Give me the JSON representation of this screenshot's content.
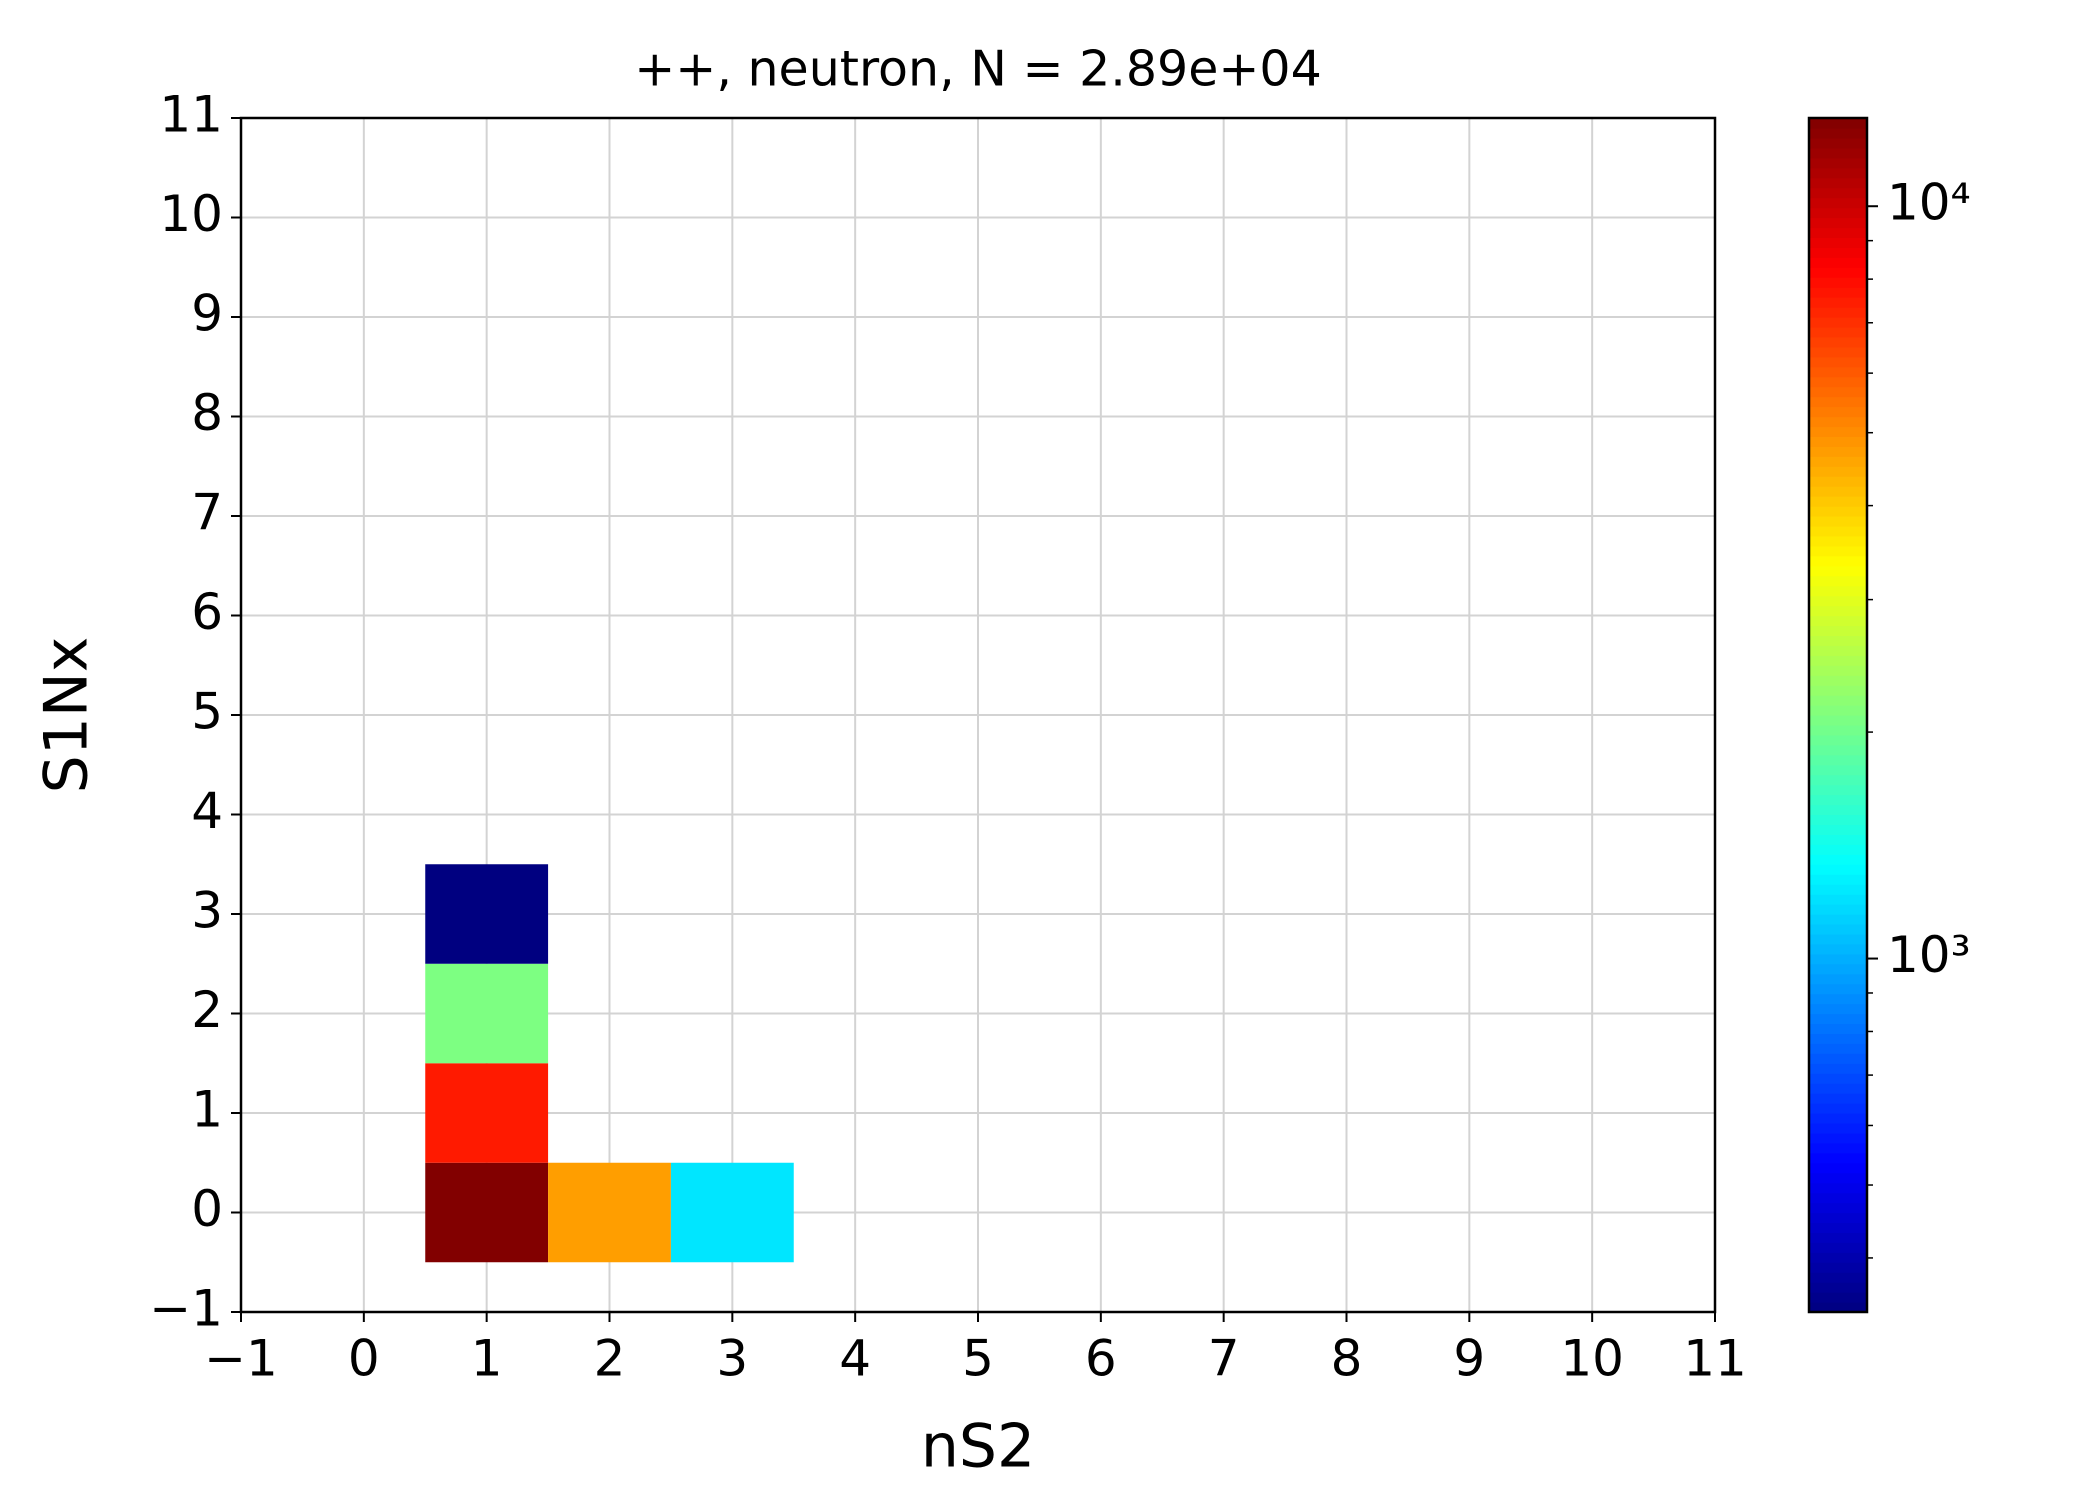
{
  "chart_data": {
    "type": "heatmap",
    "title": "++, neutron, N = 2.89e+04",
    "x_label": "nS2",
    "y_label": "S1Nx",
    "x": [
      1,
      2,
      3,
      1,
      1,
      1
    ],
    "y": [
      0,
      0,
      0,
      1,
      2,
      3
    ],
    "values": [
      13000,
      4710,
      1220,
      7570,
      2090,
      340
    ],
    "xlim": [
      -1,
      11
    ],
    "ylim": [
      -1,
      11
    ],
    "xticks": [
      {
        "value": -1,
        "label": "−1"
      },
      0,
      1,
      2,
      3,
      4,
      5,
      6,
      7,
      8,
      9,
      10,
      11
    ],
    "yticks": [
      {
        "value": -1,
        "label": "−1"
      },
      0,
      1,
      2,
      3,
      4,
      5,
      6,
      7,
      8,
      9,
      10,
      11
    ],
    "grid": true,
    "colormap": "jet",
    "color_scale": "log",
    "clim": [
      339,
      13100
    ],
    "cticks": [
      {
        "value": 1000,
        "label": "10³"
      },
      {
        "value": 10000,
        "label": "10⁴"
      }
    ]
  }
}
